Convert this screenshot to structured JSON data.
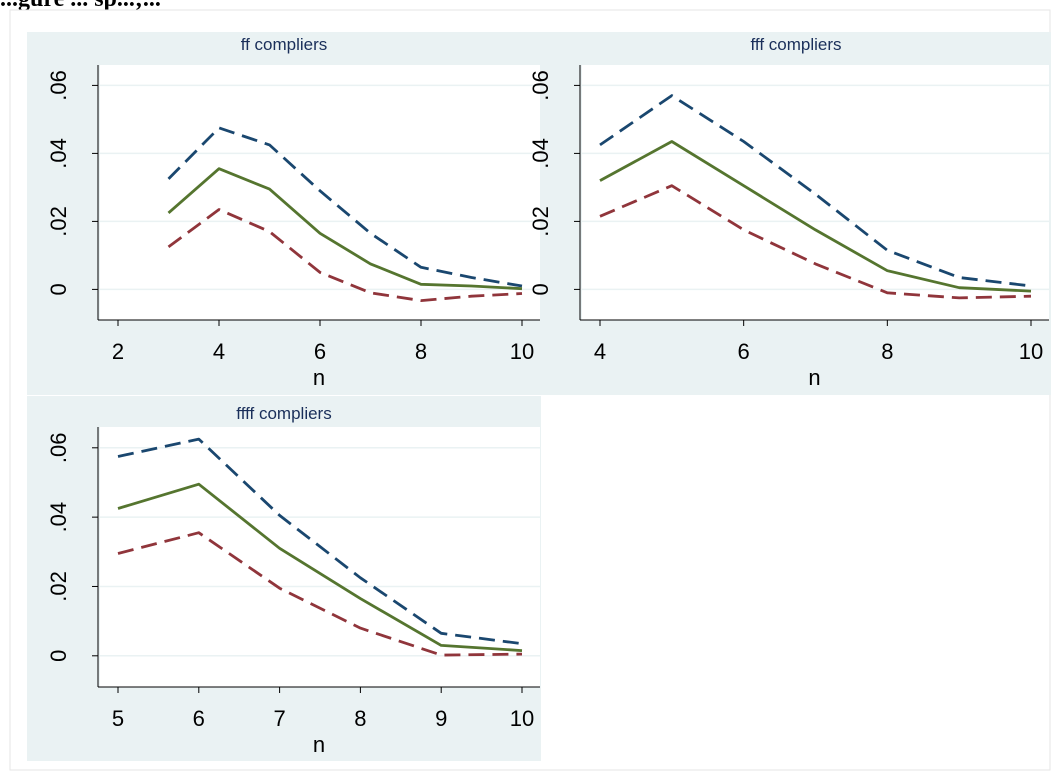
{
  "header_text": "...gure ... sp...;...",
  "chart_data": [
    {
      "type": "line",
      "title": "ff compliers",
      "xlabel": "n",
      "ylabel": "",
      "xlim": [
        2,
        10
      ],
      "xticks": [
        "2",
        "4",
        "6",
        "8",
        "10"
      ],
      "ylim": [
        -0.009,
        0.066
      ],
      "yticks": [
        "0",
        ".02",
        ".04",
        ".06"
      ],
      "x": [
        3,
        4,
        5,
        6,
        7,
        8,
        9,
        10
      ],
      "series": [
        {
          "values": [
            0.0325,
            0.0475,
            0.0425,
            0.029,
            0.0165,
            0.0065,
            0.0035,
            0.001
          ],
          "style": "dashed",
          "color": "#1a476f"
        },
        {
          "values": [
            0.0225,
            0.0355,
            0.0295,
            0.0165,
            0.0075,
            0.0015,
            0.001,
            0.0002
          ],
          "style": "solid",
          "color": "#55752f"
        },
        {
          "values": [
            0.0125,
            0.0235,
            0.017,
            0.005,
            -0.001,
            -0.0033,
            -0.002,
            -0.0012
          ],
          "style": "dashed",
          "color": "#90353b"
        }
      ]
    },
    {
      "type": "line",
      "title": "fff compliers",
      "xlabel": "n",
      "ylabel": "",
      "xlim": [
        4,
        10
      ],
      "xticks": [
        "4",
        "6",
        "8",
        "10"
      ],
      "ylim": [
        -0.009,
        0.066
      ],
      "yticks": [
        "0",
        ".02",
        ".04",
        ".06"
      ],
      "x": [
        4,
        5,
        6,
        7,
        8,
        9,
        10
      ],
      "series": [
        {
          "values": [
            0.0425,
            0.057,
            0.0435,
            0.028,
            0.0115,
            0.0035,
            0.001
          ],
          "style": "dashed",
          "color": "#1a476f"
        },
        {
          "values": [
            0.032,
            0.0435,
            0.0305,
            0.0175,
            0.0055,
            0.0005,
            -0.0005
          ],
          "style": "solid",
          "color": "#55752f"
        },
        {
          "values": [
            0.0215,
            0.0305,
            0.0175,
            0.0075,
            -0.001,
            -0.0025,
            -0.002
          ],
          "style": "dashed",
          "color": "#90353b"
        }
      ]
    },
    {
      "type": "line",
      "title": "ffff compliers",
      "xlabel": "n",
      "ylabel": "",
      "xlim": [
        5,
        10
      ],
      "xticks": [
        "5",
        "6",
        "7",
        "8",
        "9",
        "10"
      ],
      "ylim": [
        -0.009,
        0.066
      ],
      "yticks": [
        "0",
        ".02",
        ".04",
        ".06"
      ],
      "x": [
        5,
        6,
        7,
        8,
        9,
        10
      ],
      "series": [
        {
          "values": [
            0.0575,
            0.0625,
            0.0405,
            0.0225,
            0.0065,
            0.0035
          ],
          "style": "dashed",
          "color": "#1a476f"
        },
        {
          "values": [
            0.0425,
            0.0495,
            0.031,
            0.0165,
            0.003,
            0.0015
          ],
          "style": "solid",
          "color": "#55752f"
        },
        {
          "values": [
            0.0295,
            0.0355,
            0.0195,
            0.008,
            0.0002,
            0.0005
          ],
          "style": "dashed",
          "color": "#90353b"
        }
      ]
    }
  ]
}
